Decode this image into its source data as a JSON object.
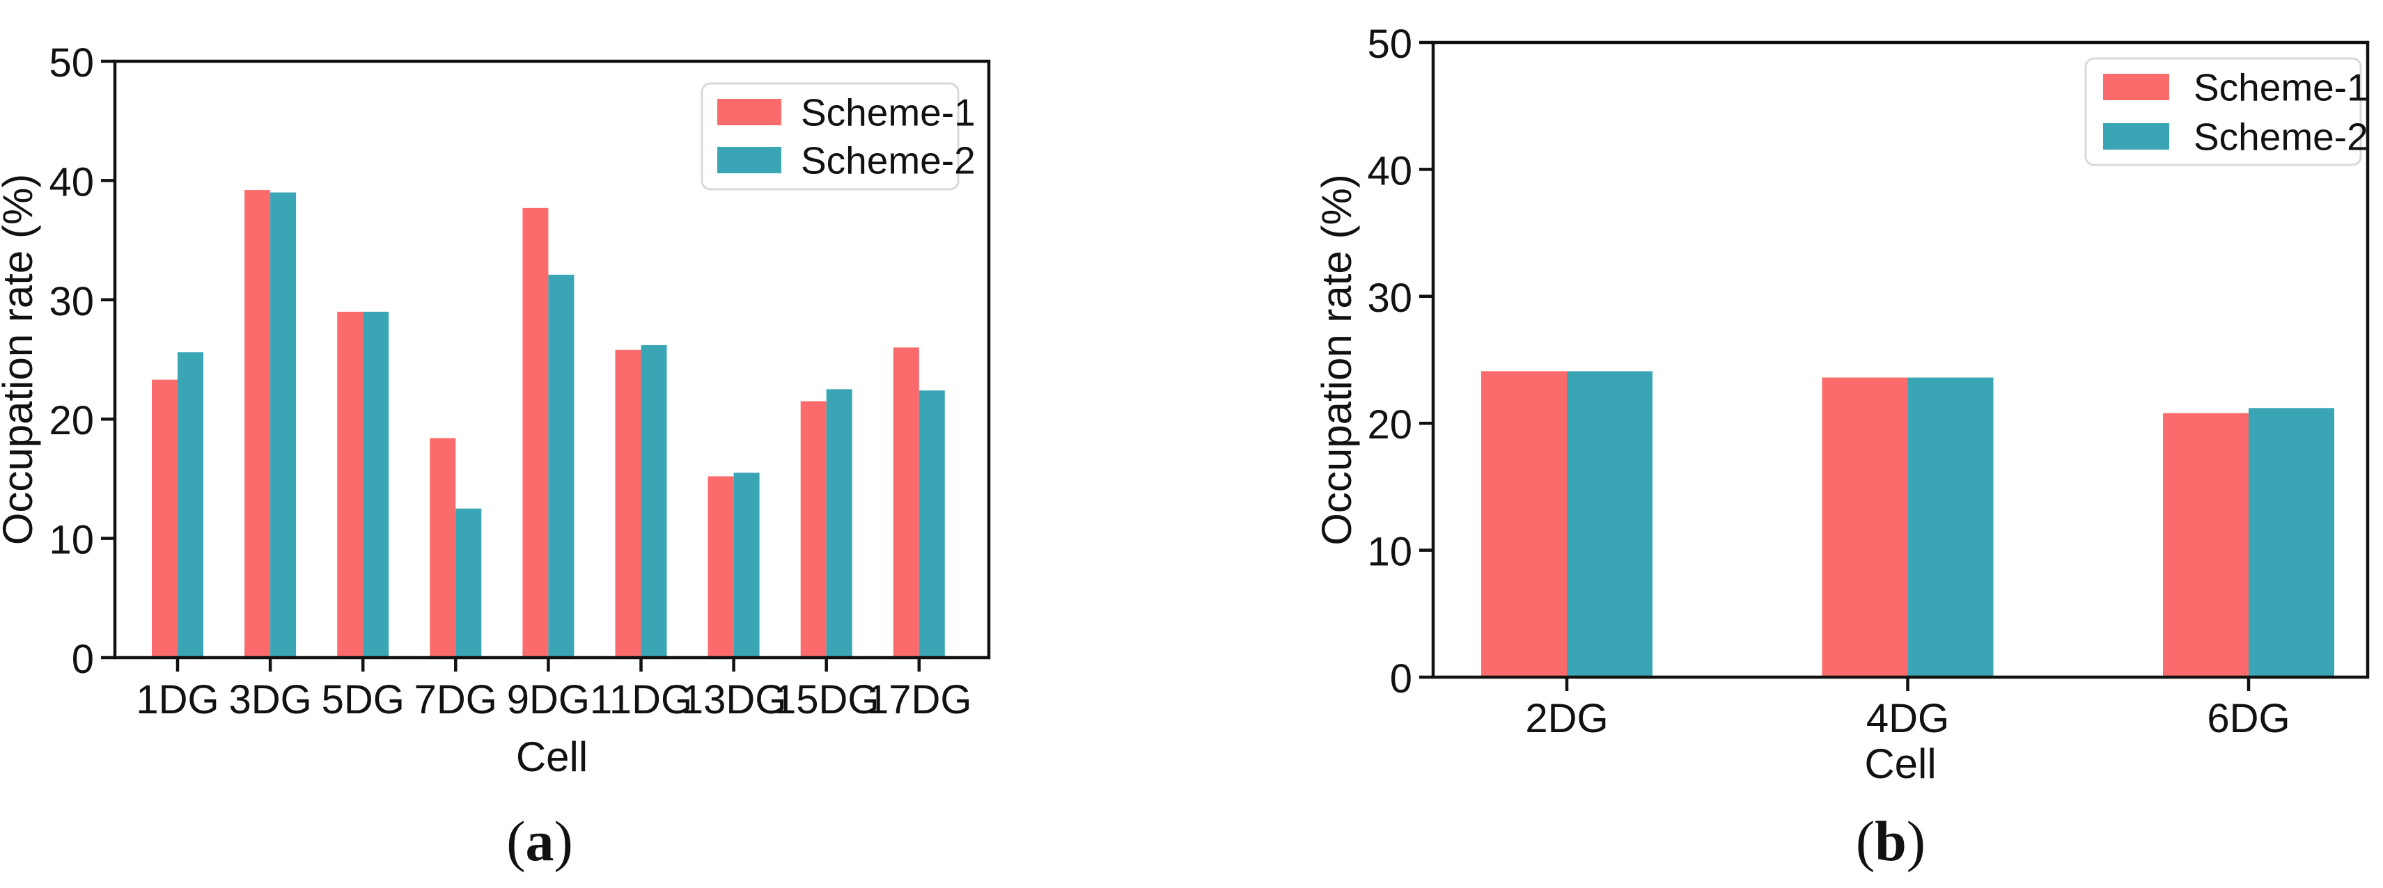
{
  "page": {
    "background": "#ffffff"
  },
  "colors": {
    "scheme1": "#FB6B6B",
    "scheme2": "#3AA5B5",
    "axis": "#111111",
    "text": "#111111",
    "legend_border": "#D9D9D9",
    "legend_bg": "#FFFFFF"
  },
  "chart_data": [
    {
      "type": "bar",
      "panel": "a",
      "caption": "(a)",
      "caption_open": "(",
      "caption_letter": "a",
      "caption_close": ")",
      "title": "",
      "xlabel": "Cell",
      "ylabel": "Occupation rate (%)",
      "ylim": [
        0,
        50
      ],
      "yticks": [
        0,
        10,
        20,
        30,
        40,
        50
      ],
      "grid": false,
      "legend": {
        "position": "top-right",
        "entries": [
          "Scheme-1",
          "Scheme-2"
        ]
      },
      "categories": [
        "1DG",
        "3DG",
        "5DG",
        "7DG",
        "9DG",
        "11DG",
        "13DG",
        "15DG",
        "17DG"
      ],
      "series": [
        {
          "name": "Scheme-1",
          "color": "#FB6B6B",
          "values": [
            23.3,
            39.2,
            29.0,
            18.4,
            37.7,
            25.8,
            15.2,
            21.5,
            26.0
          ]
        },
        {
          "name": "Scheme-2",
          "color": "#3AA5B5",
          "values": [
            25.6,
            39.0,
            29.0,
            12.5,
            32.1,
            26.2,
            15.5,
            22.5,
            22.4
          ]
        }
      ]
    },
    {
      "type": "bar",
      "panel": "b",
      "caption": "(b)",
      "caption_open": "(",
      "caption_letter": "b",
      "caption_close": ")",
      "title": "",
      "xlabel": "Cell",
      "ylabel": "Occupation rate (%)",
      "ylim": [
        0,
        50
      ],
      "yticks": [
        0,
        10,
        20,
        30,
        40,
        50
      ],
      "grid": false,
      "legend": {
        "position": "top-right",
        "entries": [
          "Scheme-1",
          "Scheme-2"
        ]
      },
      "categories": [
        "2DG",
        "4DG",
        "6DG"
      ],
      "series": [
        {
          "name": "Scheme-1",
          "color": "#FB6B6B",
          "values": [
            24.1,
            23.6,
            20.8
          ]
        },
        {
          "name": "Scheme-2",
          "color": "#3AA5B5",
          "values": [
            24.1,
            23.6,
            21.2
          ]
        }
      ]
    }
  ]
}
